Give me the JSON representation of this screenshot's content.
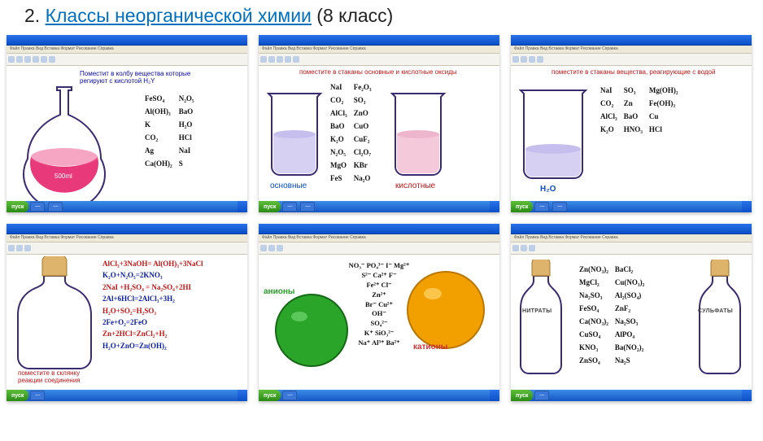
{
  "title": {
    "num": "2.",
    "link": "Классы неорганической химии",
    "suffix": "(8 класс)"
  },
  "menubar": "Файл  Правка  Вид  Вставка  Формат  Рисование  Справка",
  "start": "пуск",
  "time": "",
  "panels": {
    "p1": {
      "instr": "Поместит в колбу вещества которые\nрегируют с кислотой H₂Y",
      "flask_label": "500ml",
      "formulas": [
        [
          "FeSO₄",
          "N₂O₅"
        ],
        [
          "Al(OH)₃",
          "BaO"
        ],
        [
          "K",
          "H₂O"
        ],
        [
          "CO₂",
          "HCl"
        ],
        [
          "Ag",
          "NaI"
        ],
        [
          "Ca(OH)₂",
          "S"
        ]
      ]
    },
    "p2": {
      "instr": "поместите в стаканы основные и кислотные оксиды",
      "beaker1": "основные",
      "beaker2": "кислотные",
      "formulas": [
        [
          "NaI",
          "Fe₂O₃"
        ],
        [
          "CO₂",
          "SO₃"
        ],
        [
          "AlCl₃",
          "ZnO"
        ],
        [
          "BaO",
          "CuO"
        ],
        [
          "K₂O",
          "CuF₂"
        ],
        [
          "N₂O₅",
          "Cl₂O₇"
        ],
        [
          "MgO",
          "KBr"
        ],
        [
          "FeS",
          "Na₂O"
        ]
      ]
    },
    "p3": {
      "instr": "поместите в стаканы вещества, реагирующие с водой",
      "beaker": "H₂O",
      "formulas": [
        [
          "NaI",
          "SO₃",
          "Mg(OH)₂"
        ],
        [
          "CO₂",
          "Zn",
          "Fe(OH)₃"
        ],
        [
          "AlCl₃",
          "BaO",
          "Cu"
        ],
        [
          "K₂O",
          "HNO₃",
          "HCl"
        ]
      ]
    },
    "p4": {
      "instr": "поместите в склянку\nреакции соединения",
      "eq": [
        {
          "c": "r",
          "t": "AlCl₃+3NaOH= Al(OH)₃+3NaCl"
        },
        {
          "c": "b",
          "t": "K₂O+N₂O₅=2KNO₃"
        },
        {
          "c": "r",
          "t": "2NaI +H₂SO₄ = Na₂SO₄+2HI"
        },
        {
          "c": "b",
          "t": "2Al+6HCl=2AlCl₃+3H₂"
        },
        {
          "c": "r",
          "t": "H₂O+SO₂=H₂SO₃"
        },
        {
          "c": "b",
          "t": "2Fe+O₂=2FeO"
        },
        {
          "c": "r",
          "t": "Zn+2HCl=ZnCl₂+H₂"
        },
        {
          "c": "b",
          "t": "H₂O+ZnO=Zn(OH)₂"
        }
      ]
    },
    "p5": {
      "anion": "анионы",
      "cation": "катионы",
      "ions": "NO₃⁻   PO₄³⁻   I⁻   Mg²⁺\nS²⁻   Ca²⁺   F⁻\nFe²⁺   Cl⁻\nZn²⁺\nBr⁻   Cu²⁺\nOH⁻\nSO₄²⁻\nK⁺   SiO₃²⁻\nNa⁺   Al³⁺   Ba²⁺"
    },
    "p6": {
      "nitr": "НИТРАТЫ",
      "sulf": "СУЛЬФАТЫ",
      "formulas": [
        [
          "Zn(NO₃)₂",
          "BaCl₂"
        ],
        [
          "MgCl₂",
          "Cu(NO₃)₂"
        ],
        [
          "Na₂SO₃",
          "Al₂(SO₄)"
        ],
        [
          "FeSO₄",
          "ZnF₂"
        ],
        [
          "Ca(NO₃)₂",
          "Na₂SO₃"
        ],
        [
          "CuSO₄",
          "AlPO₄"
        ],
        [
          "KNO₃",
          "Ba(NO₂)₂"
        ],
        [
          "ZnSO₄",
          "Na₂S"
        ]
      ]
    }
  },
  "colors": {
    "flask_liquid": "#e83a7a",
    "beaker_purple": "#d6d0f2",
    "beaker_pink": "#f4c9d9",
    "anion_fill": "#2aa52a",
    "cation_fill": "#f2a000",
    "cork": "#deb36b"
  }
}
